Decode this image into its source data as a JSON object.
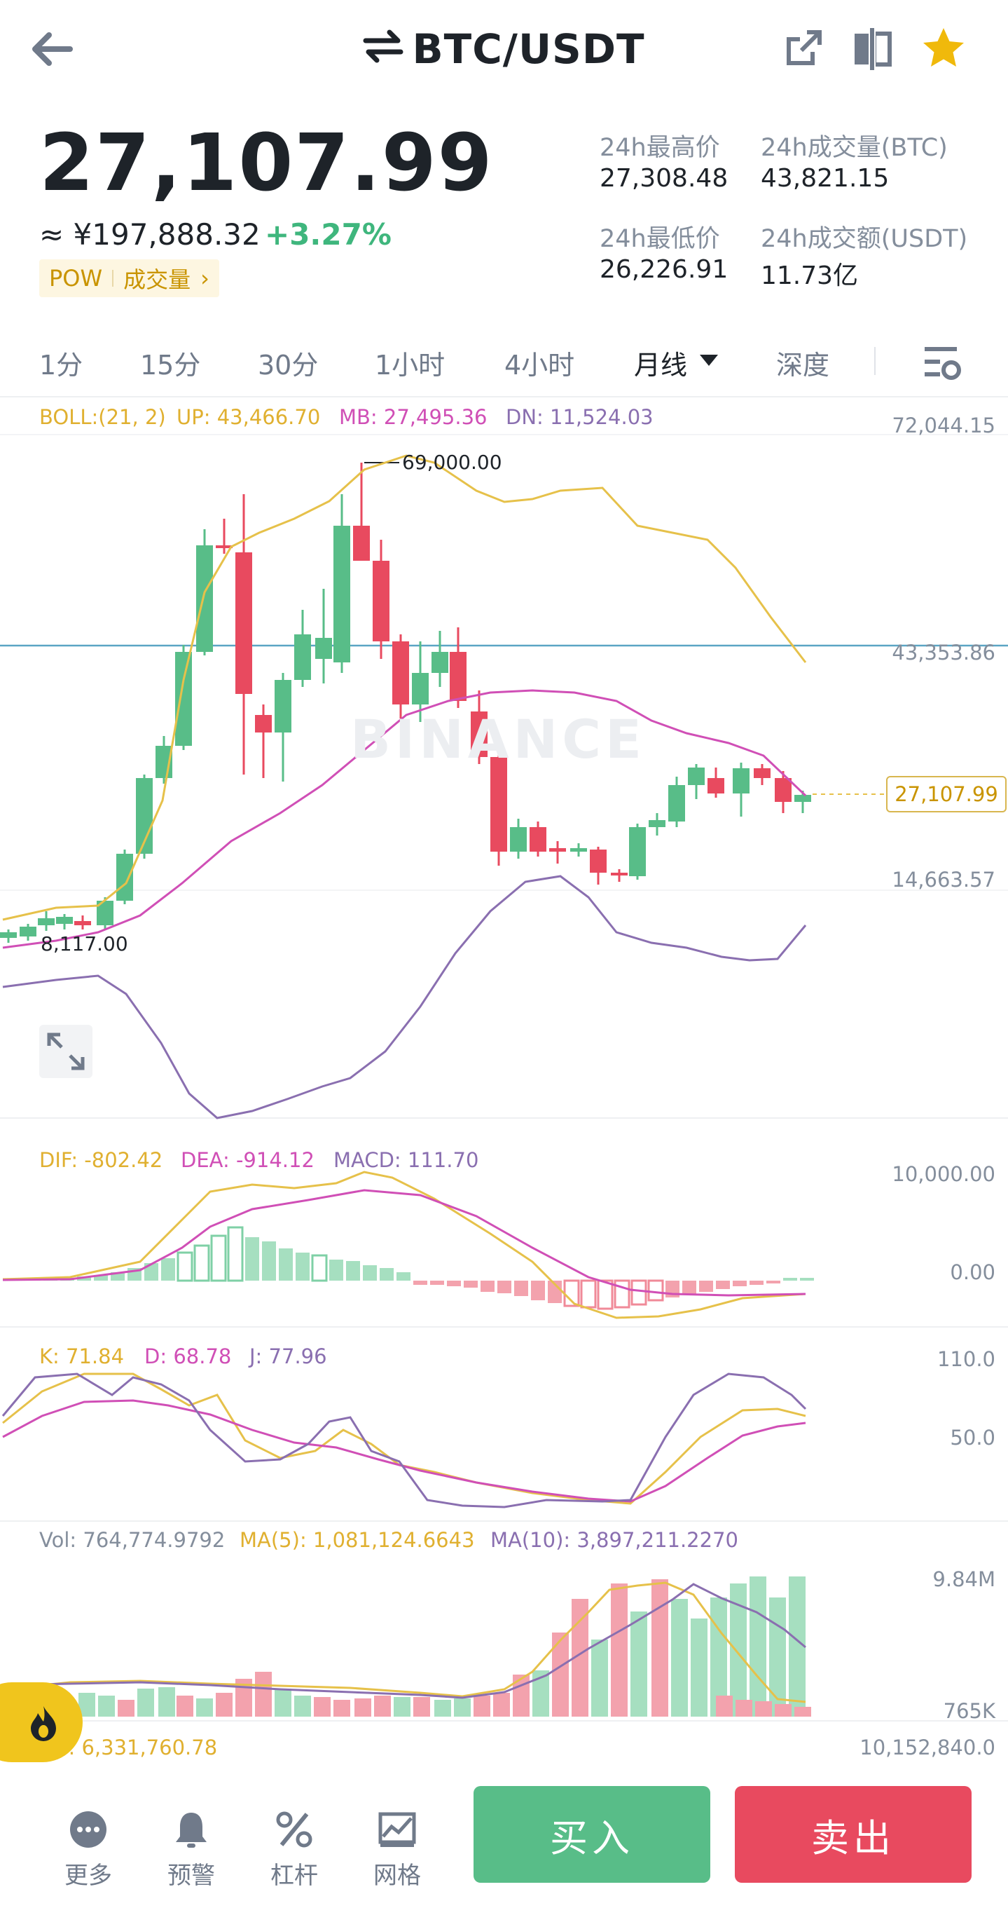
{
  "header": {
    "title": "BTC/USDT"
  },
  "ticker": {
    "price": "27,107.99",
    "cny": "≈ ¥197,888.32",
    "change": "+3.27%",
    "tag1": "POW",
    "tag2": "成交量",
    "high_label": "24h最高价",
    "high_value": "27,308.48",
    "vol_label": "24h成交量(BTC)",
    "vol_value": "43,821.15",
    "low_label": "24h最低价",
    "low_value": "26,226.91",
    "turnover_label": "24h成交额(USDT)",
    "turnover_value": "11.73亿"
  },
  "tabs": [
    "1分",
    "15分",
    "30分",
    "1小时",
    "4小时",
    "月线",
    "深度"
  ],
  "boll": {
    "label": "BOLL:(21, 2)",
    "up": "UP: 43,466.70",
    "mb": "MB: 27,495.36",
    "dn": "DN: 11,524.03"
  },
  "main_axis": {
    "top": "72,044.15",
    "mid": "43,353.86",
    "low": "14,663.57"
  },
  "annotations": {
    "high": "69,000.00",
    "low": "8,117.00",
    "current": "27,107.99"
  },
  "watermark": "BINANCE",
  "macd": {
    "dif": "DIF: -802.42",
    "dea": "DEA: -914.12",
    "macd": "MACD: 111.70",
    "axis_top": "10,000.00",
    "axis_zero": "0.00"
  },
  "kdj": {
    "k": "K: 71.84",
    "d": "D: 68.78",
    "j": "J: 77.96",
    "axis_top": "110.0",
    "axis_mid": "50.0"
  },
  "vol": {
    "vol": "Vol: 764,774.9792",
    "ma5": "MA(5): 1,081,124.6643",
    "ma10": "MA(10): 3,897,211.2270",
    "axis_top": "9.84M",
    "axis_bottom": "765K"
  },
  "obv": {
    "label": "OBV: 6,331,760.78",
    "label_visible": "V: 6,331,760.78",
    "axis": "10,152,840.0"
  },
  "bottom_nav": {
    "more": "更多",
    "alert": "预警",
    "leverage": "杠杆",
    "grid": "网格",
    "buy": "买入",
    "sell": "卖出"
  },
  "colors": {
    "up": "#58bd88",
    "down": "#e84a5f",
    "accent": "#f0b90b",
    "boll_up": "#e6c14a",
    "boll_mb": "#d04fb6",
    "boll_dn": "#8a6fb0",
    "hline": "#5aa5c4"
  }
}
